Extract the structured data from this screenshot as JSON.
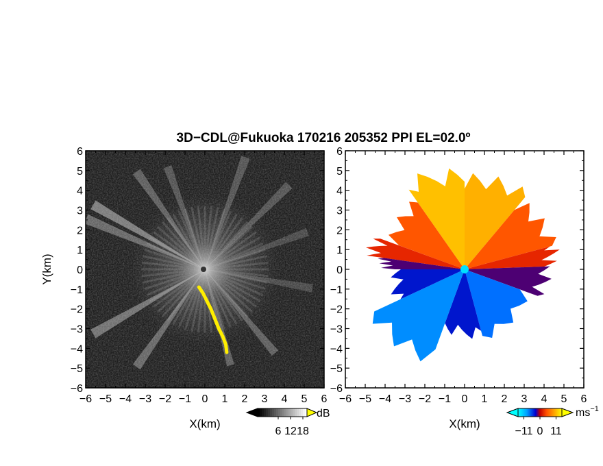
{
  "chart_data": [
    {
      "type": "heatmap",
      "title": "3D−CDL@Fukuoka 170216 205352 PPI EL=02.0º",
      "panel": "left",
      "quantity": "SNR",
      "xlabel": "X(km)",
      "ylabel": "Y(km)",
      "xlim": [
        -6,
        6
      ],
      "ylim": [
        -6,
        6
      ],
      "xticks": [
        "−6",
        "−5",
        "−4",
        "−3",
        "−2",
        "−1",
        "0",
        "1",
        "2",
        "3",
        "4",
        "5",
        "6"
      ],
      "yticks": [
        "−6",
        "−5",
        "−4",
        "−3",
        "−2",
        "−1",
        "0",
        "1",
        "2",
        "3",
        "4",
        "5",
        "6"
      ],
      "colorbar": {
        "unit": "dB",
        "ticks": [
          "6",
          "12",
          "18"
        ],
        "range": [
          0,
          24
        ],
        "colors": [
          "#000000",
          "#ffffff",
          "#ffff00"
        ]
      },
      "beams": [
        {
          "azimuth_deg": 300,
          "intensity": 0.45,
          "range_km": 6.5
        },
        {
          "azimuth_deg": 293,
          "intensity": 0.35,
          "range_km": 6.5
        },
        {
          "azimuth_deg": 240,
          "intensity": 0.4,
          "range_km": 6.5
        },
        {
          "azimuth_deg": 215,
          "intensity": 0.35,
          "range_km": 6.0
        },
        {
          "azimuth_deg": 325,
          "intensity": 0.3,
          "range_km": 6.0
        },
        {
          "azimuth_deg": 340,
          "intensity": 0.25,
          "range_km": 5.5
        },
        {
          "azimuth_deg": 20,
          "intensity": 0.25,
          "range_km": 6.0
        },
        {
          "azimuth_deg": 45,
          "intensity": 0.25,
          "range_km": 6.0
        },
        {
          "azimuth_deg": 70,
          "intensity": 0.2,
          "range_km": 5.5
        },
        {
          "azimuth_deg": 100,
          "intensity": 0.2,
          "range_km": 5.5
        },
        {
          "azimuth_deg": 140,
          "intensity": 0.3,
          "range_km": 5.5
        },
        {
          "azimuth_deg": 165,
          "intensity": 0.3,
          "range_km": 5.0
        }
      ],
      "high_snr_echo": {
        "color": "#ffee00",
        "x_km": [
          -0.3,
          -0.1,
          0.1,
          0.3,
          0.5,
          0.7,
          0.9,
          1.05,
          1.1
        ],
        "y_km": [
          -0.9,
          -1.2,
          -1.6,
          -2.0,
          -2.5,
          -3.0,
          -3.4,
          -3.8,
          -4.2
        ]
      }
    },
    {
      "type": "heatmap",
      "panel": "right",
      "quantity": "Doppler velocity",
      "xlabel": "X(km)",
      "xlim": [
        -6,
        6
      ],
      "ylim": [
        -6,
        6
      ],
      "xticks": [
        "−6",
        "−5",
        "−4",
        "−3",
        "−2",
        "−1",
        "0",
        "1",
        "2",
        "3",
        "4",
        "5",
        "6"
      ],
      "yticks": [
        "−6",
        "−5",
        "−4",
        "−3",
        "−2",
        "−1",
        "0",
        "1",
        "2",
        "3",
        "4",
        "5",
        "6"
      ],
      "colorbar": {
        "unit": "ms",
        "unit_exp": "−1",
        "ticks": [
          "−11",
          "0",
          "11"
        ],
        "range": [
          -15,
          15
        ],
        "colors": [
          "#00ffff",
          "#0070ff",
          "#0000c0",
          "#c00000",
          "#ff4000",
          "#ffb000",
          "#ffff00"
        ]
      },
      "sectors": [
        {
          "from_deg": 325,
          "to_deg": 360,
          "range_km": 5.5,
          "v_ms": 11
        },
        {
          "from_deg": 0,
          "to_deg": 40,
          "range_km": 5.2,
          "v_ms": 10
        },
        {
          "from_deg": 40,
          "to_deg": 75,
          "range_km": 5.0,
          "v_ms": 6
        },
        {
          "from_deg": 290,
          "to_deg": 325,
          "range_km": 4.5,
          "v_ms": 6
        },
        {
          "from_deg": 278,
          "to_deg": 290,
          "range_km": 5.2,
          "v_ms": 3
        },
        {
          "from_deg": 75,
          "to_deg": 88,
          "range_km": 5.0,
          "v_ms": 3
        },
        {
          "from_deg": 88,
          "to_deg": 110,
          "range_km": 4.5,
          "v_ms": -3
        },
        {
          "from_deg": 110,
          "to_deg": 165,
          "range_km": 3.8,
          "v_ms": -10
        },
        {
          "from_deg": 165,
          "to_deg": 200,
          "range_km": 3.6,
          "v_ms": -6
        },
        {
          "from_deg": 200,
          "to_deg": 245,
          "range_km": 5.5,
          "v_ms": -11
        },
        {
          "from_deg": 245,
          "to_deg": 270,
          "range_km": 4.0,
          "v_ms": -6
        },
        {
          "from_deg": 270,
          "to_deg": 278,
          "range_km": 4.5,
          "v_ms": -3
        }
      ]
    }
  ]
}
